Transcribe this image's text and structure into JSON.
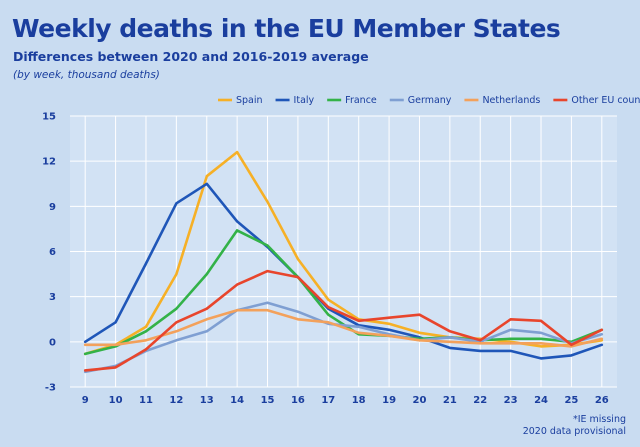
{
  "title": "Weekly deaths in the EU Member States",
  "subtitle": "Differences between  2020 and 2016-2019 average",
  "unit_note": "(by week, thousand deaths)",
  "footnote": [
    "*IE missing",
    "2020 data provisional"
  ],
  "chart_data": {
    "type": "line",
    "x": [
      9,
      10,
      11,
      12,
      13,
      14,
      15,
      16,
      17,
      18,
      19,
      20,
      21,
      22,
      23,
      24,
      25,
      26
    ],
    "ylim": [
      -3,
      15
    ],
    "yticks": [
      -3,
      0,
      3,
      6,
      9,
      12,
      15
    ],
    "grid": true,
    "legend_position": "top-right",
    "series": [
      {
        "name": "Spain",
        "color": "#f6b026",
        "values": [
          -0.8,
          -0.2,
          1.0,
          4.5,
          11.0,
          12.6,
          9.3,
          5.5,
          2.8,
          1.5,
          1.2,
          0.6,
          0.3,
          0.2,
          0.0,
          -0.3,
          -0.2,
          0.1
        ]
      },
      {
        "name": "Italy",
        "color": "#1f56b8",
        "values": [
          0.0,
          1.3,
          5.2,
          9.2,
          10.5,
          8.0,
          6.3,
          4.3,
          2.2,
          1.1,
          0.8,
          0.3,
          -0.4,
          -0.6,
          -0.6,
          -1.1,
          -0.9,
          -0.2
        ]
      },
      {
        "name": "France",
        "color": "#33b248",
        "values": [
          -0.8,
          -0.3,
          0.7,
          2.2,
          4.5,
          7.4,
          6.4,
          4.3,
          1.8,
          0.5,
          0.4,
          0.2,
          0.3,
          0.1,
          0.2,
          0.2,
          0.0,
          0.8
        ]
      },
      {
        "name": "Germany",
        "color": "#7f9fd2",
        "values": [
          -2.0,
          -1.6,
          -0.6,
          0.1,
          0.7,
          2.1,
          2.6,
          2.0,
          1.2,
          1.0,
          0.5,
          0.1,
          0.3,
          0.0,
          0.8,
          0.6,
          -0.1,
          0.5
        ]
      },
      {
        "name": "Netherlands",
        "color": "#f3a15b",
        "values": [
          -0.2,
          -0.2,
          0.1,
          0.7,
          1.5,
          2.1,
          2.1,
          1.5,
          1.3,
          0.6,
          0.4,
          0.1,
          0.0,
          -0.1,
          -0.1,
          -0.1,
          -0.3,
          0.2
        ]
      },
      {
        "name": "Other EU countries*",
        "color": "#e8452c",
        "values": [
          -1.9,
          -1.7,
          -0.5,
          1.3,
          2.2,
          3.8,
          4.7,
          4.3,
          2.3,
          1.4,
          1.6,
          1.8,
          0.7,
          0.1,
          1.5,
          1.4,
          -0.2,
          0.8
        ]
      }
    ]
  }
}
